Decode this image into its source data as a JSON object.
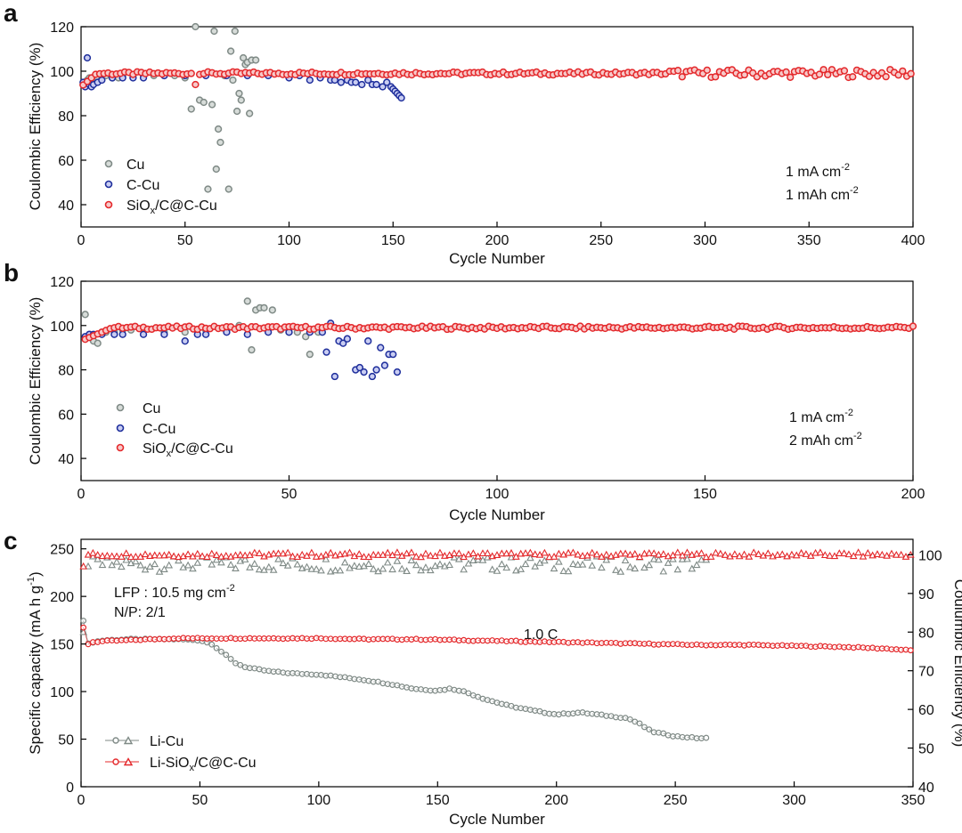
{
  "figure": {
    "panel_a_letter": "a",
    "panel_b_letter": "b",
    "panel_c_letter": "c"
  },
  "colors": {
    "cu": "#7f8a86",
    "ccu": "#1f2f9c",
    "sioxc": "#e4282b",
    "cu_fill": "#d7dcd9",
    "ccu_fill": "#c9cdf2",
    "sioxc_fill": "#f7c9c9"
  },
  "chart_data": [
    {
      "type": "scatter",
      "panel": "a",
      "xlabel": "Cycle Number",
      "ylabel": "Coulombic Efficiency (%)",
      "xlim": [
        0,
        400
      ],
      "ylim": [
        30,
        120
      ],
      "xticks": [
        "0",
        "50",
        "100",
        "150",
        "200",
        "250",
        "300",
        "350",
        "400"
      ],
      "yticks": [
        "40",
        "60",
        "80",
        "100",
        "120"
      ],
      "grid": false,
      "legend_position": "bottom-left",
      "annotations": [
        "1 mA cm",
        "1 mAh cm"
      ],
      "series": [
        {
          "name": "Cu",
          "color": "cu",
          "x": [
            1,
            2,
            3,
            4,
            5,
            6,
            8,
            10,
            12,
            15,
            18,
            20,
            25,
            30,
            35,
            40,
            45,
            50,
            53,
            55,
            57,
            59,
            61,
            63,
            64,
            65,
            66,
            67,
            69,
            71,
            72,
            73,
            74,
            75,
            76,
            77,
            78,
            79,
            80,
            81,
            82,
            84
          ],
          "y": [
            94,
            95,
            96,
            97,
            97,
            97,
            97,
            97,
            98,
            97,
            97,
            98,
            98,
            98,
            98,
            98,
            98,
            97,
            83,
            120,
            87,
            86,
            47,
            85,
            118,
            56,
            74,
            68,
            98,
            47,
            109,
            96,
            118,
            82,
            90,
            87,
            106,
            103,
            104,
            81,
            105,
            105
          ]
        },
        {
          "name": "C-Cu",
          "color": "ccu",
          "x": [
            1,
            2,
            3,
            4,
            5,
            6,
            8,
            10,
            15,
            20,
            25,
            30,
            40,
            50,
            60,
            70,
            80,
            90,
            100,
            105,
            110,
            115,
            120,
            122,
            125,
            128,
            130,
            132,
            135,
            138,
            140,
            142,
            145,
            147,
            149,
            150,
            151,
            152,
            153,
            154
          ],
          "y": [
            95,
            93,
            106,
            94,
            93,
            94,
            95,
            96,
            97,
            97,
            97,
            97,
            98,
            98,
            98,
            98,
            98,
            98,
            97,
            98,
            96,
            97,
            96,
            96,
            95,
            96,
            95,
            95,
            94,
            96,
            94,
            94,
            93,
            95,
            93,
            92,
            91,
            90,
            89,
            88
          ]
        }
      ],
      "dense_series": {
        "name": "SiOx/C@C-Cu",
        "color": "sioxc",
        "x_start": 1,
        "x_end": 400,
        "step": 2,
        "base": 99
      },
      "legend": [
        "Cu",
        "C-Cu",
        "SiOx/C@C-Cu"
      ]
    },
    {
      "type": "scatter",
      "panel": "b",
      "xlabel": "Cycle Number",
      "ylabel": "Coulombic Efficiency (%)",
      "xlim": [
        0,
        200
      ],
      "ylim": [
        30,
        120
      ],
      "xticks": [
        "0",
        "50",
        "100",
        "150",
        "200"
      ],
      "yticks": [
        "40",
        "60",
        "80",
        "100",
        "120"
      ],
      "grid": false,
      "legend_position": "bottom-left",
      "annotations": [
        "1 mA cm",
        "2 mAh cm"
      ],
      "series": [
        {
          "name": "Cu",
          "color": "cu",
          "x": [
            1,
            2,
            3,
            4,
            5,
            6,
            8,
            10,
            12,
            15,
            20,
            25,
            30,
            35,
            38,
            40,
            41,
            42,
            43,
            44,
            46,
            48,
            50,
            52,
            54,
            55,
            57
          ],
          "y": [
            105,
            96,
            93,
            92,
            97,
            97,
            97,
            98,
            98,
            98,
            97,
            97,
            98,
            98,
            100,
            111,
            89,
            107,
            108,
            108,
            107,
            98,
            97,
            97,
            95,
            87,
            97
          ]
        },
        {
          "name": "C-Cu",
          "color": "ccu",
          "x": [
            1,
            2,
            3,
            5,
            8,
            10,
            15,
            20,
            25,
            28,
            30,
            35,
            40,
            45,
            50,
            55,
            58,
            59,
            60,
            61,
            62,
            63,
            64,
            66,
            67,
            68,
            69,
            70,
            71,
            72,
            73,
            74,
            75,
            76
          ],
          "y": [
            95,
            96,
            96,
            96,
            96,
            96,
            96,
            96,
            93,
            96,
            96,
            97,
            96,
            97,
            97,
            97,
            97,
            88,
            101,
            77,
            93,
            92,
            94,
            80,
            81,
            79,
            93,
            77,
            80,
            90,
            82,
            87,
            87,
            79
          ]
        }
      ],
      "dense_series": {
        "name": "SiOx/C@C-Cu",
        "color": "sioxc",
        "x_start": 1,
        "x_end": 200,
        "step": 1,
        "base": 99
      },
      "legend": [
        "Cu",
        "C-Cu",
        "SiOx/C@C-Cu"
      ]
    },
    {
      "type": "scatter",
      "panel": "c",
      "xlabel": "Cycle Number",
      "ylabel_left": "Specific capacity (mA h g",
      "ylabel_right": "Coulumbic Efficiency (%)",
      "xlim": [
        0,
        350
      ],
      "ylim_left": [
        0,
        260
      ],
      "ylim_right": [
        40,
        104
      ],
      "xticks": [
        "0",
        "50",
        "100",
        "150",
        "200",
        "250",
        "300",
        "350"
      ],
      "yticks_left": [
        "0",
        "50",
        "100",
        "150",
        "200",
        "250"
      ],
      "yticks_right": [
        "40",
        "50",
        "60",
        "70",
        "80",
        "90",
        "100"
      ],
      "grid": false,
      "legend_position": "bottom-left",
      "annotations": [
        "LFP : 10.5 mg cm",
        "N/P: 2/1",
        "1.0 C"
      ],
      "capacity_series": [
        {
          "name": "Li-Cu",
          "color": "cu",
          "x": [
            1,
            2,
            3,
            5,
            10,
            20,
            30,
            40,
            50,
            55,
            60,
            65,
            70,
            80,
            90,
            100,
            110,
            120,
            130,
            140,
            150,
            155,
            160,
            170,
            180,
            190,
            200,
            210,
            220,
            230,
            235,
            240,
            250,
            260,
            263
          ],
          "y": [
            175,
            148,
            150,
            152,
            154,
            155,
            155,
            155,
            154,
            150,
            140,
            130,
            125,
            121,
            119,
            118,
            115,
            112,
            108,
            103,
            101,
            103,
            101,
            92,
            85,
            80,
            76,
            78,
            75,
            72,
            66,
            58,
            53,
            51,
            51
          ]
        },
        {
          "name": "Li-SiOx/C@C-Cu",
          "color": "sioxc",
          "x": [
            1,
            2,
            3,
            5,
            10,
            20,
            30,
            40,
            50,
            60,
            80,
            100,
            120,
            140,
            160,
            180,
            200,
            220,
            240,
            260,
            280,
            300,
            320,
            340,
            350
          ],
          "y": [
            167,
            163,
            150,
            152,
            153,
            154,
            155,
            156,
            156,
            156,
            156,
            156,
            155,
            155,
            154,
            153,
            152,
            151,
            150,
            149,
            149,
            148,
            147,
            145,
            143
          ]
        }
      ],
      "ce_series": [
        {
          "name": "Li-Cu",
          "color": "cu",
          "x_start": 1,
          "x_end": 263,
          "base": 99.2,
          "head_x": [
            1,
            2,
            3
          ],
          "head_y": [
            80,
            92,
            97
          ]
        },
        {
          "name": "Li-SiOx/C@C-Cu",
          "color": "sioxc",
          "x_start": 1,
          "x_end": 350,
          "base": 100,
          "head_x": [
            1,
            2,
            3
          ],
          "head_y": [
            97,
            90,
            100
          ]
        }
      ],
      "legend": [
        "Li-Cu",
        "Li-SiOx/C@C-Cu"
      ]
    }
  ]
}
